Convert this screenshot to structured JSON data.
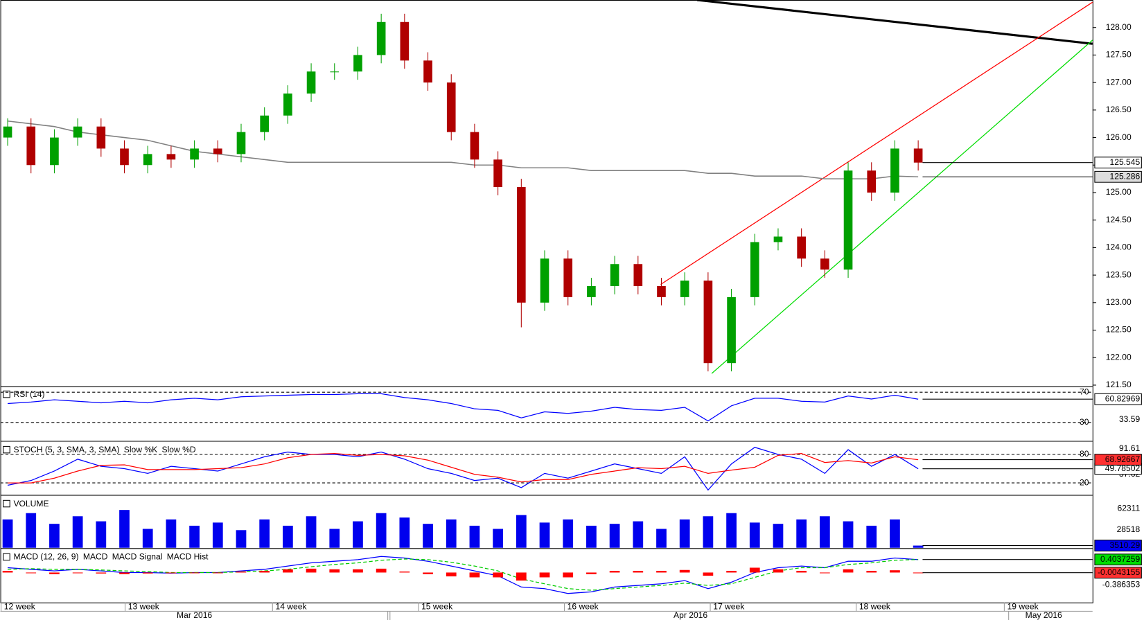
{
  "chart_data": [
    {
      "type": "candlestick",
      "open": [
        126.0,
        126.2,
        125.5,
        126.0,
        126.2,
        125.8,
        125.5,
        125.7,
        125.6,
        125.8,
        125.7,
        126.1,
        126.4,
        126.8,
        127.2,
        127.2,
        127.5,
        128.1,
        127.4,
        127.0,
        126.1,
        125.6,
        125.1,
        123.0,
        123.8,
        123.1,
        123.3,
        123.7,
        123.3,
        123.1,
        123.4,
        121.9,
        123.1,
        124.1,
        124.2,
        123.8,
        123.6,
        125.4,
        125.0,
        125.8
      ],
      "high": [
        126.35,
        126.35,
        126.15,
        126.35,
        126.35,
        125.95,
        125.85,
        125.85,
        125.95,
        125.95,
        126.25,
        126.55,
        126.95,
        127.35,
        127.35,
        127.65,
        128.25,
        128.25,
        127.55,
        127.15,
        126.25,
        125.75,
        125.25,
        123.95,
        123.95,
        123.45,
        123.85,
        123.85,
        123.45,
        123.55,
        123.55,
        123.25,
        124.25,
        124.35,
        124.35,
        123.95,
        125.55,
        125.55,
        125.95,
        125.95
      ],
      "low": [
        125.85,
        125.35,
        125.35,
        125.85,
        125.65,
        125.35,
        125.35,
        125.45,
        125.45,
        125.55,
        125.55,
        125.95,
        126.25,
        126.65,
        127.05,
        127.05,
        127.35,
        127.25,
        126.85,
        125.95,
        125.45,
        124.95,
        122.55,
        122.85,
        122.95,
        122.95,
        123.15,
        123.15,
        122.95,
        122.95,
        121.75,
        121.75,
        122.95,
        123.95,
        123.65,
        123.45,
        123.45,
        124.85,
        124.85,
        125.4
      ],
      "close": [
        126.2,
        125.5,
        126.0,
        126.2,
        125.8,
        125.5,
        125.7,
        125.6,
        125.8,
        125.7,
        126.1,
        126.4,
        126.8,
        127.2,
        127.2,
        127.5,
        128.1,
        127.4,
        127.0,
        126.1,
        125.6,
        125.1,
        123.0,
        123.8,
        123.1,
        123.3,
        123.7,
        123.3,
        123.1,
        123.4,
        121.9,
        123.1,
        124.1,
        124.2,
        123.8,
        123.6,
        125.4,
        125.0,
        125.8,
        125.545
      ],
      "up_color": "#00a000",
      "down_color": "#b00000",
      "ma": {
        "color": "#808080",
        "values": [
          126.3,
          126.25,
          126.2,
          126.1,
          126.05,
          126.0,
          125.95,
          125.85,
          125.75,
          125.7,
          125.65,
          125.6,
          125.55,
          125.55,
          125.55,
          125.55,
          125.55,
          125.55,
          125.55,
          125.55,
          125.5,
          125.5,
          125.45,
          125.45,
          125.45,
          125.4,
          125.4,
          125.4,
          125.4,
          125.4,
          125.35,
          125.35,
          125.3,
          125.3,
          125.3,
          125.25,
          125.25,
          125.25,
          125.3,
          125.286
        ]
      },
      "ylim": [
        121.5,
        128.5
      ],
      "yticks": [
        {
          "value": 128,
          "label": "128.00"
        },
        {
          "value": 127.5,
          "label": "127.50"
        },
        {
          "value": 127,
          "label": "127.00"
        },
        {
          "value": 126.5,
          "label": "126.50"
        },
        {
          "value": 126,
          "label": "126.00"
        },
        {
          "value": 125.5,
          "label": "125.50"
        },
        {
          "value": 125,
          "label": "125.00"
        },
        {
          "value": 124.5,
          "label": "124.50"
        },
        {
          "value": 124,
          "label": "124.00"
        },
        {
          "value": 123.5,
          "label": "123.50"
        },
        {
          "value": 123,
          "label": "123.00"
        },
        {
          "value": 122.5,
          "label": "122.50"
        },
        {
          "value": 122,
          "label": "122.00"
        },
        {
          "value": 121.5,
          "label": "121.50"
        }
      ],
      "week_labels": [
        "12 week",
        "13 week",
        "14 week",
        "15 week",
        "16 week",
        "17 week",
        "18 week",
        "19 week"
      ],
      "month_labels": [
        "Mar 2016",
        "Apr 2016",
        "May 2016"
      ]
    },
    {
      "type": "line",
      "title": "RSI (14)",
      "series": [
        {
          "name": null,
          "color": "#0000ff",
          "values": [
            55,
            57,
            60,
            58,
            56,
            58,
            56,
            60,
            62,
            60,
            64,
            65,
            66,
            67,
            67,
            68,
            68,
            63,
            60,
            55,
            48,
            46,
            36,
            44,
            42,
            45,
            50,
            47,
            46,
            50,
            32,
            52,
            62,
            62,
            58,
            57,
            65,
            61,
            66,
            60.82969
          ]
        }
      ],
      "ylim": [
        6,
        76.5
      ],
      "levels": [
        70,
        30
      ],
      "extra_labels": [
        33.59
      ]
    },
    {
      "type": "line",
      "title": "STOCH (5, 3, SMA, 3, SMA)",
      "series": [
        {
          "name": "Slow %K",
          "color": "#0000ff",
          "values": [
            15,
            25,
            45,
            70,
            55,
            50,
            40,
            55,
            50,
            45,
            60,
            75,
            85,
            80,
            80,
            75,
            85,
            70,
            50,
            40,
            25,
            30,
            10,
            40,
            30,
            45,
            60,
            50,
            40,
            75,
            5,
            60,
            95,
            80,
            70,
            40,
            90,
            55,
            80,
            49.78502
          ]
        },
        {
          "name": "Slow %D",
          "color": "#ff0000",
          "values": [
            20,
            20,
            30,
            45,
            57,
            58,
            48,
            48,
            48,
            50,
            52,
            60,
            73,
            80,
            82,
            78,
            80,
            77,
            68,
            53,
            38,
            32,
            22,
            27,
            27,
            38,
            45,
            52,
            50,
            55,
            40,
            47,
            53,
            78,
            82,
            63,
            67,
            62,
            75,
            68.92667
          ]
        }
      ],
      "ylim": [
        -3,
        104.6
      ],
      "levels": [
        80,
        20
      ],
      "extra_labels": [
        91.61,
        37.62
      ]
    },
    {
      "type": "bar",
      "title": "VOLUME",
      "color": "#0000ee",
      "values": [
        45000,
        55000,
        38000,
        50000,
        42000,
        60000,
        30000,
        45000,
        35000,
        40000,
        28000,
        45000,
        35000,
        50000,
        30000,
        42000,
        55000,
        48000,
        38000,
        45000,
        35000,
        30000,
        52000,
        40000,
        45000,
        35000,
        38000,
        42000,
        30000,
        45000,
        50000,
        55000,
        40000,
        38000,
        45000,
        50000,
        42000,
        35000,
        45000,
        3510.29
      ],
      "ylim": [
        0,
        81000
      ],
      "yticks": [
        62311,
        28518
      ]
    },
    {
      "type": "macd",
      "title": "MACD (12, 26, 9)",
      "series": [
        {
          "name": "MACD",
          "color": "#0000ff",
          "last_label": false,
          "values": [
            0.15,
            0.1,
            0.05,
            0.1,
            0.05,
            0.0,
            0.0,
            -0.02,
            0.0,
            0.0,
            0.05,
            0.1,
            0.2,
            0.3,
            0.35,
            0.4,
            0.5,
            0.45,
            0.35,
            0.2,
            0.05,
            -0.1,
            -0.45,
            -0.5,
            -0.65,
            -0.6,
            -0.45,
            -0.4,
            -0.35,
            -0.25,
            -0.5,
            -0.3,
            0.0,
            0.15,
            0.2,
            0.15,
            0.35,
            0.35,
            0.45,
            0.4
          ]
        },
        {
          "name": "MACD Signal",
          "color": "#00cc00",
          "dashed": true,
          "values": [
            0.1,
            0.12,
            0.1,
            0.1,
            0.08,
            0.05,
            0.03,
            0.0,
            0.0,
            0.0,
            0.02,
            0.05,
            0.1,
            0.18,
            0.25,
            0.3,
            0.38,
            0.42,
            0.4,
            0.32,
            0.2,
            0.05,
            -0.2,
            -0.35,
            -0.5,
            -0.55,
            -0.5,
            -0.45,
            -0.4,
            -0.33,
            -0.4,
            -0.35,
            -0.15,
            0.05,
            0.15,
            0.15,
            0.25,
            0.3,
            0.38,
            0.4037259
          ]
        },
        {
          "name": "MACD Hist",
          "color": "#ff0000",
          "bars": true,
          "values": [
            0.05,
            -0.02,
            -0.05,
            0.0,
            -0.03,
            -0.05,
            -0.03,
            -0.02,
            0,
            0,
            0.03,
            0.05,
            0.1,
            0.12,
            0.1,
            0.1,
            0.12,
            0.03,
            -0.05,
            -0.12,
            -0.15,
            -0.15,
            -0.25,
            -0.15,
            -0.15,
            -0.05,
            0.05,
            0.05,
            0.05,
            0.08,
            -0.1,
            0.05,
            0.15,
            0.1,
            0.05,
            0.0,
            0.1,
            0.05,
            0.07,
            -0.0043155
          ]
        }
      ],
      "ylim": [
        -0.84,
        0.7
      ],
      "extra_labels": [
        -0.386353
      ]
    }
  ]
}
